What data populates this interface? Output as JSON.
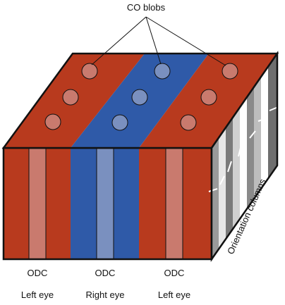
{
  "title": "CO blobs",
  "side_label": "Orientation columns",
  "columns": [
    {
      "type_label": "ODC",
      "eye_label": "Left eye",
      "eye": "left"
    },
    {
      "type_label": "ODC",
      "eye_label": "Right eye",
      "eye": "right"
    },
    {
      "type_label": "ODC",
      "eye_label": "Left eye",
      "eye": "left"
    }
  ],
  "colors": {
    "left_eye": "#b83a1e",
    "right_eye": "#2f5aa8",
    "left_eye_blob": "#c97a6e",
    "right_eye_blob": "#7a90bf",
    "outline": "#111111"
  }
}
